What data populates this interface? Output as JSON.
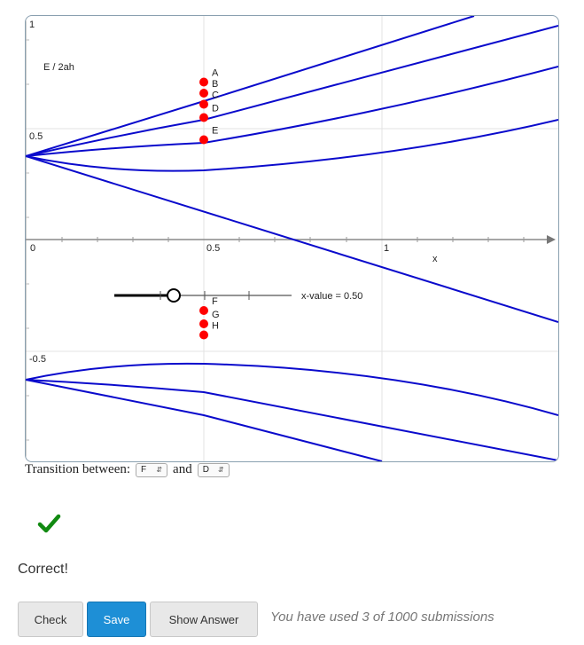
{
  "graph": {
    "y_axis_label": "E / 2ah",
    "x_axis_label": "x",
    "x_ticks": [
      {
        "label": "0",
        "value": 0
      },
      {
        "label": "0.5",
        "value": 0.5
      },
      {
        "label": "1",
        "value": 1
      }
    ],
    "y_ticks": [
      {
        "label": "1",
        "value": 1
      },
      {
        "label": "0.5",
        "value": 0.5
      },
      {
        "label": "-0.5",
        "value": -0.5
      }
    ],
    "curve_color": "#0a0acc",
    "point_color": "#ff0000",
    "points": [
      {
        "label": "A",
        "x": 0.5,
        "y": 0.71
      },
      {
        "label": "B",
        "x": 0.5,
        "y": 0.66
      },
      {
        "label": "C",
        "x": 0.5,
        "y": 0.61
      },
      {
        "label": "D",
        "x": 0.5,
        "y": 0.55
      },
      {
        "label": "E",
        "x": 0.5,
        "y": 0.45
      },
      {
        "label": "F",
        "x": 0.5,
        "y": -0.32
      },
      {
        "label": "G",
        "x": 0.5,
        "y": -0.38
      },
      {
        "label": "H",
        "x": 0.5,
        "y": -0.43
      }
    ],
    "slider": {
      "label": "x-value = 0.50",
      "value": 0.5
    }
  },
  "transition": {
    "label": "Transition between:",
    "from": "F",
    "connector": "and",
    "to": "D"
  },
  "status": {
    "text": "Correct!",
    "icon": "checkmark-icon",
    "color": "#118a11"
  },
  "actions": {
    "check_label": "Check",
    "save_label": "Save",
    "show_answer_label": "Show Answer"
  },
  "submissions_text": "You have used 3 of 1000 submissions"
}
